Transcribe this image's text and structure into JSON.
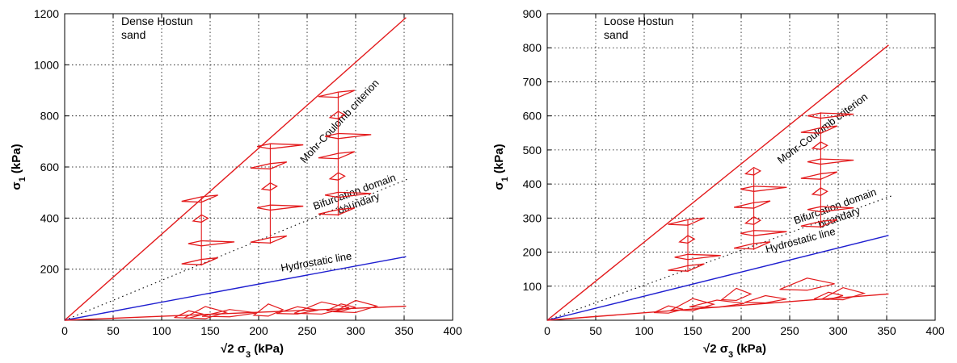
{
  "chart_data": [
    {
      "type": "line",
      "xlabel_prefix": "√2 σ",
      "xlabel_sub": "3",
      "xlabel_suffix": " (kPa)",
      "ylabel_prefix": "σ",
      "ylabel_sub": "1",
      "ylabel_suffix": " (kPa)",
      "xlim": [
        0,
        400
      ],
      "ylim": [
        0,
        1200
      ],
      "xticks": [
        0,
        50,
        100,
        150,
        200,
        250,
        300,
        350,
        400
      ],
      "yticks": [
        200,
        400,
        600,
        800,
        1000,
        1200
      ],
      "grid": true,
      "annotation_lines": [
        "Dense Hostun",
        "sand"
      ],
      "series": [
        {
          "name": "Mohr-Coulomb criterion",
          "color": "#e31a1c",
          "style": "solid",
          "x": [
            0,
            352
          ],
          "y": [
            0,
            1185
          ]
        },
        {
          "name": "Bifurcation domain boundary",
          "color": "#000000",
          "style": "dotted",
          "x": [
            0,
            355
          ],
          "y": [
            0,
            555
          ]
        },
        {
          "name": "Hydrostatic line",
          "color": "#1f1fd0",
          "style": "solid",
          "x": [
            0,
            352
          ],
          "y": [
            0,
            249
          ]
        },
        {
          "name": "",
          "color": "#e31a1c",
          "style": "solid",
          "x": [
            0,
            352
          ],
          "y": [
            0,
            55
          ]
        }
      ],
      "curve_labels": [
        {
          "series": "Mohr-Coulomb criterion",
          "x": 286,
          "y": 770,
          "angle_deg": -47,
          "text": "Mohr-Coulomb criterion"
        },
        {
          "series": "Bifurcation domain boundary",
          "x": 300,
          "y": 490,
          "angle_deg": -20,
          "text_lines": [
            "Bifurcation domain",
            "boundary"
          ]
        },
        {
          "series": "Hydrostatic line",
          "x": 260,
          "y": 215,
          "angle_deg": -10,
          "text": "Hydrostatic line"
        }
      ],
      "glyph_columns": [
        {
          "x": 141,
          "y": [
            225,
            300,
            395,
            470
          ]
        },
        {
          "x": 212,
          "y": [
            310,
            440,
            520,
            600,
            680
          ]
        },
        {
          "x": 282,
          "y": [
            420,
            490,
            560,
            640,
            720,
            800,
            880
          ]
        }
      ],
      "glyph_tail_length": 34,
      "glyph_height": 22,
      "base_glyphs": [
        {
          "x": 128,
          "y": 18
        },
        {
          "x": 145,
          "y": 22
        },
        {
          "x": 170,
          "y": 23
        },
        {
          "x": 210,
          "y": 32
        },
        {
          "x": 240,
          "y": 34
        },
        {
          "x": 265,
          "y": 40
        },
        {
          "x": 285,
          "y": 45
        },
        {
          "x": 300,
          "y": 46
        }
      ]
    },
    {
      "type": "line",
      "xlabel_prefix": "√2 σ",
      "xlabel_sub": "3",
      "xlabel_suffix": " (kPa)",
      "ylabel_prefix": "σ",
      "ylabel_sub": "1",
      "ylabel_suffix": " (kPa)",
      "xlim": [
        0,
        400
      ],
      "ylim": [
        0,
        900
      ],
      "xticks": [
        0,
        50,
        100,
        150,
        200,
        250,
        300,
        350,
        400
      ],
      "yticks": [
        100,
        200,
        300,
        400,
        500,
        600,
        700,
        800,
        900
      ],
      "grid": true,
      "annotation_lines": [
        "Loose Hostun",
        "sand"
      ],
      "series": [
        {
          "name": "Mohr-Coulomb criterion",
          "color": "#e31a1c",
          "style": "solid",
          "x": [
            0,
            352
          ],
          "y": [
            0,
            808
          ]
        },
        {
          "name": "Bifurcation domain boundary",
          "color": "#000000",
          "style": "dotted",
          "x": [
            0,
            355
          ],
          "y": [
            0,
            365
          ]
        },
        {
          "name": "Hydrostatic line",
          "color": "#1f1fd0",
          "style": "solid",
          "x": [
            0,
            352
          ],
          "y": [
            0,
            249
          ]
        },
        {
          "name": "",
          "color": "#e31a1c",
          "style": "solid",
          "x": [
            0,
            352
          ],
          "y": [
            0,
            77
          ]
        }
      ],
      "curve_labels": [
        {
          "series": "Mohr-Coulomb criterion",
          "x": 286,
          "y": 555,
          "angle_deg": -37,
          "text": "Mohr-Coulomb criterion"
        },
        {
          "series": "Bifurcation domain boundary",
          "x": 298,
          "y": 325,
          "angle_deg": -20,
          "text_lines": [
            "Bifurcation domain",
            "boundary"
          ]
        },
        {
          "series": "Hydrostatic line",
          "x": 262,
          "y": 225,
          "angle_deg": -15,
          "text": "Hydrostatic line"
        }
      ],
      "glyph_columns": [
        {
          "x": 145,
          "y": [
            150,
            185,
            235,
            285
          ]
        },
        {
          "x": 213,
          "y": [
            215,
            255,
            290,
            335,
            385,
            435
          ]
        },
        {
          "x": 282,
          "y": [
            280,
            325,
            375,
            420,
            465,
            510,
            555,
            600
          ]
        }
      ],
      "glyph_tail_length": 34,
      "glyph_height": 17,
      "base_glyphs": [
        {
          "x": 125,
          "y": 28
        },
        {
          "x": 150,
          "y": 40
        },
        {
          "x": 175,
          "y": 45
        },
        {
          "x": 195,
          "y": 70
        },
        {
          "x": 225,
          "y": 58
        },
        {
          "x": 268,
          "y": 100
        },
        {
          "x": 290,
          "y": 68
        },
        {
          "x": 305,
          "y": 72
        }
      ]
    }
  ]
}
